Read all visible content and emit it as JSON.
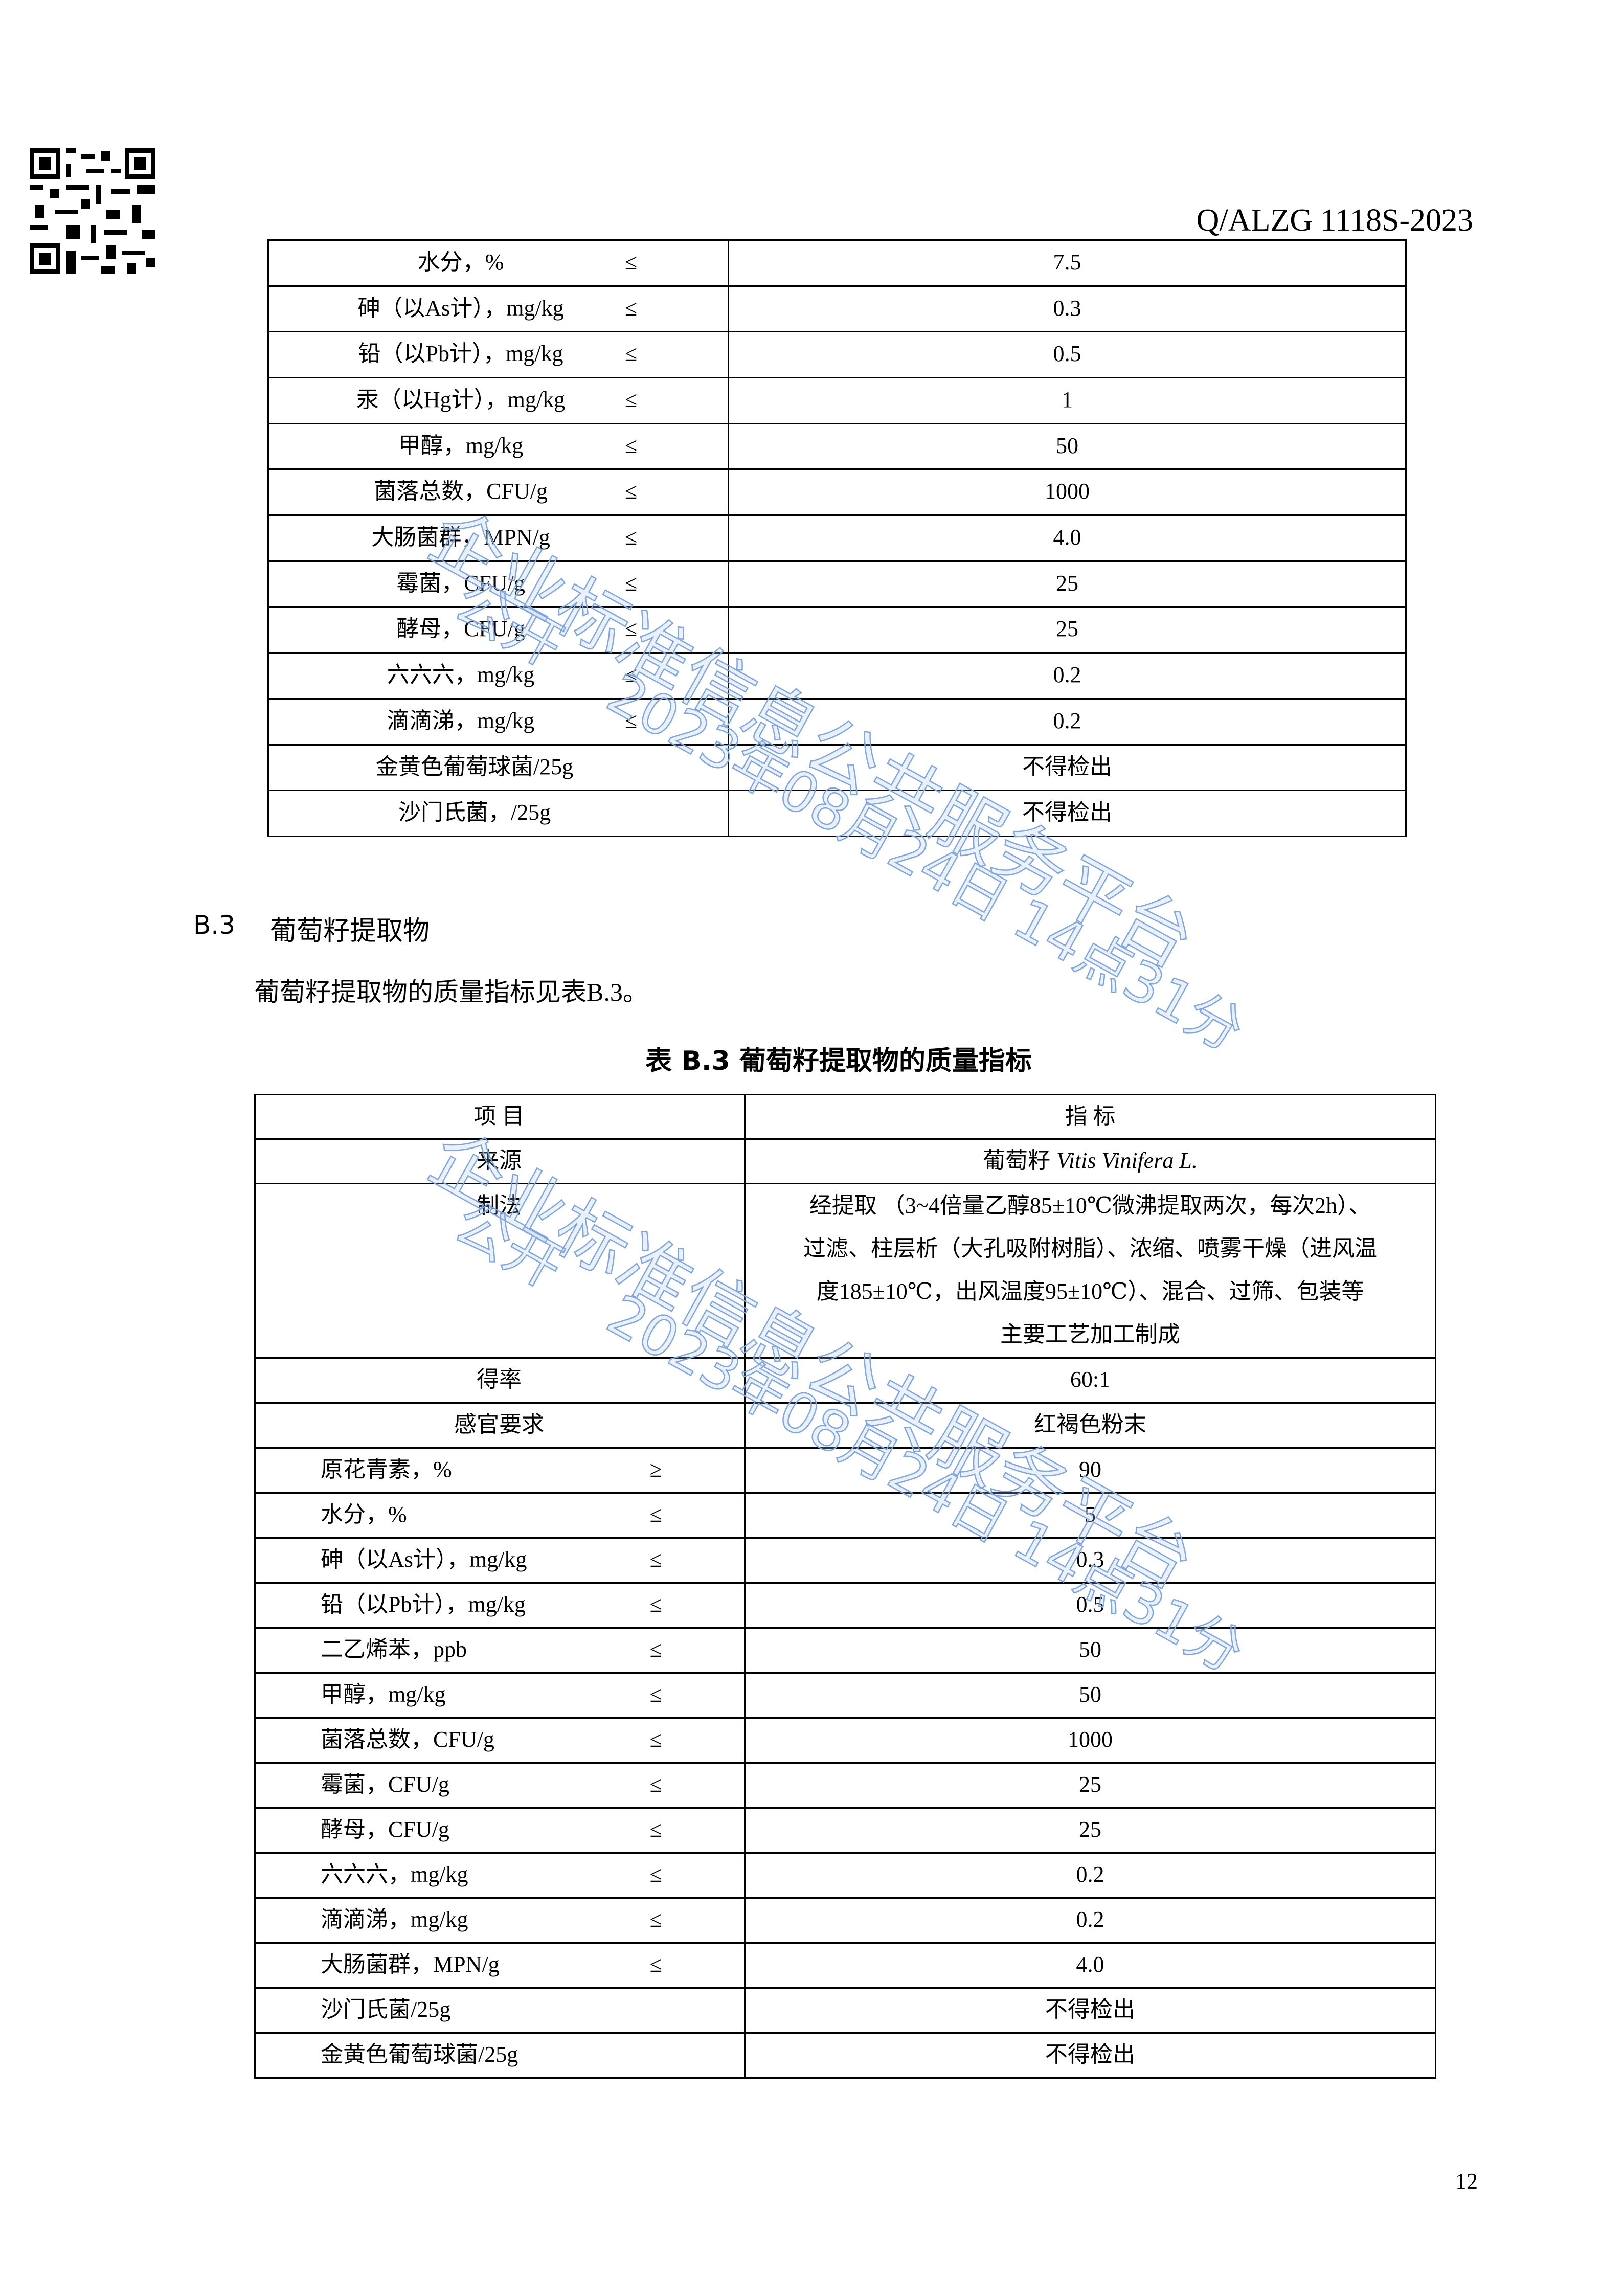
{
  "header": {
    "code": "Q/ALZG 1118S-2023"
  },
  "table1": {
    "rows": [
      {
        "item": "水分，%",
        "limit": "≤",
        "value": "7.5"
      },
      {
        "item": "砷（以As计），mg/kg",
        "limit": "≤",
        "value": "0.3"
      },
      {
        "item": "铅（以Pb计），mg/kg",
        "limit": "≤",
        "value": "0.5"
      },
      {
        "item": "汞（以Hg计），mg/kg",
        "limit": "≤",
        "value": "1"
      },
      {
        "item": "甲醇，mg/kg",
        "limit": "≤",
        "value": "50"
      },
      {
        "item": "菌落总数，CFU/g",
        "limit": "≤",
        "value": "1000"
      },
      {
        "item": "大肠菌群，MPN/g",
        "limit": "≤",
        "value": "4.0"
      },
      {
        "item": "霉菌，CFU/g",
        "limit": "≤",
        "value": "25"
      },
      {
        "item": "酵母，CFU/g",
        "limit": "≤",
        "value": "25"
      },
      {
        "item": "六六六，mg/kg",
        "limit": "≤",
        "value": "0.2"
      },
      {
        "item": "滴滴涕，mg/kg",
        "limit": "≤",
        "value": "0.2"
      },
      {
        "item": "金黄色葡萄球菌/25g",
        "value": "不得检出"
      },
      {
        "item": "沙门氏菌，/25g",
        "value": "不得检出"
      }
    ]
  },
  "section": {
    "number": "B.3",
    "title": "葡萄籽提取物",
    "paragraph": "葡萄籽提取物的质量指标见表B.3。"
  },
  "table2": {
    "caption": "表 B.3 葡萄籽提取物的质量指标",
    "header": [
      "项 目",
      "指 标"
    ],
    "source": {
      "item": "来源",
      "value": "葡萄籽",
      "value_latin": "Vitis Vinifera L."
    },
    "process": {
      "item": "制法",
      "lines": [
        "经提取 （3~4倍量乙醇85±10℃微沸提取两次，每次2h）、",
        "过滤、柱层析（大孔吸附树脂）、浓缩、喷雾干燥（进风温",
        "度185±10℃，出风温度95±10℃）、混合、过筛、包装等",
        "主要工艺加工制成"
      ]
    },
    "rows": [
      {
        "item": "得率",
        "value": "60:1"
      },
      {
        "item": "感官要求",
        "value": "红褐色粉末"
      },
      {
        "item": "原花青素，%",
        "limit": "≥",
        "value": "90"
      },
      {
        "item": "水分，%",
        "limit": "≤",
        "value": "5"
      },
      {
        "item": "砷（以As计），mg/kg",
        "limit": "≤",
        "value": "0.3"
      },
      {
        "item": "铅（以Pb计），mg/kg",
        "limit": "≤",
        "value": "0.5"
      },
      {
        "item": "二乙烯苯，ppb",
        "limit": "≤",
        "value": "50"
      },
      {
        "item": "甲醇，mg/kg",
        "limit": "≤",
        "value": "50"
      },
      {
        "item": "菌落总数，CFU/g",
        "limit": "≤",
        "value": "1000"
      },
      {
        "item": "霉菌，CFU/g",
        "limit": "≤",
        "value": "25"
      },
      {
        "item": "酵母，CFU/g",
        "limit": "≤",
        "value": "25"
      },
      {
        "item": "六六六，mg/kg",
        "limit": "≤",
        "value": "0.2"
      },
      {
        "item": "滴滴涕，mg/kg",
        "limit": "≤",
        "value": "0.2"
      },
      {
        "item": "大肠菌群，MPN/g",
        "limit": "≤",
        "value": "4.0"
      },
      {
        "item": "沙门氏菌/25g",
        "value": "不得检出"
      },
      {
        "item": "金黄色葡萄球菌/25g",
        "value": "不得检出"
      }
    ]
  },
  "watermark": {
    "platform": "企业标准信息公共服务平台",
    "status": "公开",
    "time": "2023年08月24日 14点31分"
  },
  "footer": {
    "page": "12"
  }
}
